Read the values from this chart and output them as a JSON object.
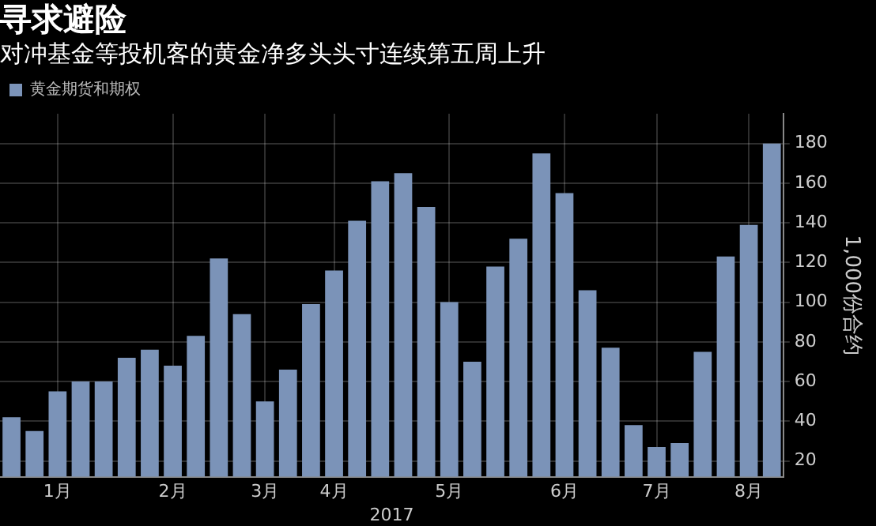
{
  "chart_data": {
    "type": "bar",
    "title": "寻求避险",
    "subtitle": "对冲基金等投机客的黄金净多头头寸连续第五周上升",
    "categories": [
      null,
      null,
      "1月",
      null,
      null,
      null,
      null,
      "2月",
      null,
      null,
      null,
      "3月",
      null,
      null,
      "4月",
      null,
      null,
      null,
      null,
      "5月",
      null,
      null,
      null,
      null,
      "6月",
      null,
      null,
      null,
      "7月",
      null,
      null,
      null,
      "8月",
      null
    ],
    "series": [
      {
        "name": "黄金期货和期权",
        "color": "#7b93b8",
        "values": [
          42,
          35,
          55,
          60,
          60,
          72,
          76,
          68,
          83,
          122,
          94,
          50,
          66,
          99,
          116,
          141,
          161,
          165,
          148,
          100,
          70,
          118,
          132,
          175,
          155,
          106,
          77,
          38,
          27,
          29,
          75,
          123,
          139,
          180
        ]
      }
    ],
    "ylabel": "1,000份合约",
    "ylim": [
      12,
      195
    ],
    "yticks": [
      20,
      40,
      60,
      80,
      100,
      120,
      140,
      160,
      180
    ],
    "annotations": [
      "2017"
    ],
    "grid": true,
    "legend": "top left"
  }
}
